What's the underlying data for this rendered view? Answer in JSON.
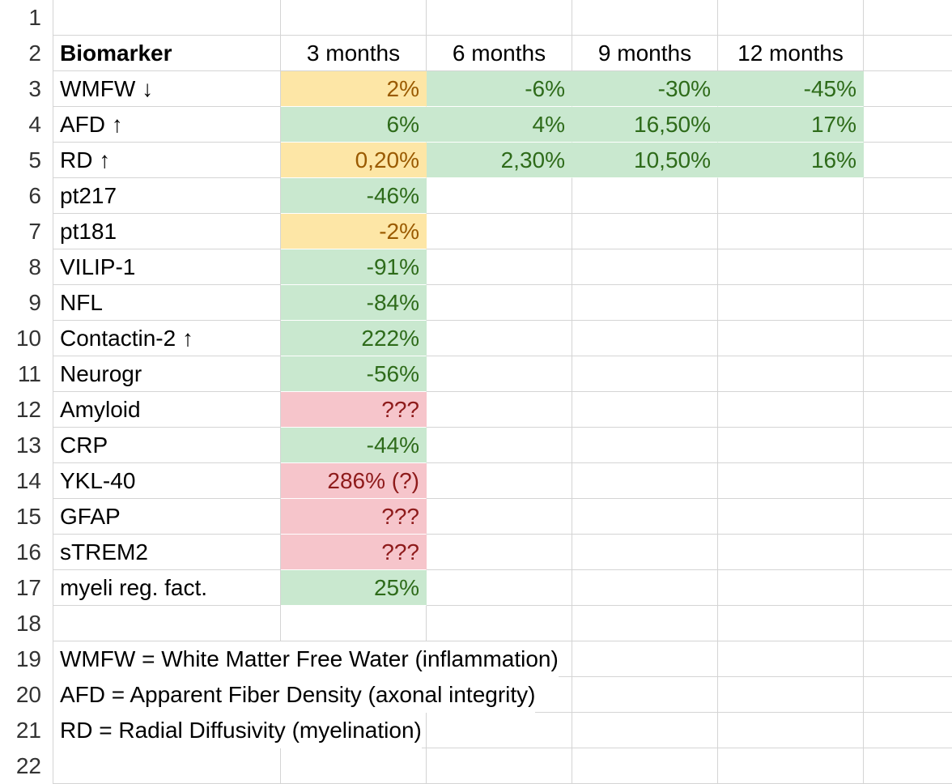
{
  "spreadsheet": {
    "row_numbers": [
      "1",
      "2",
      "3",
      "4",
      "5",
      "6",
      "7",
      "8",
      "9",
      "10",
      "11",
      "12",
      "13",
      "14",
      "15",
      "16",
      "17",
      "18",
      "19",
      "20",
      "21",
      "22"
    ],
    "header": {
      "biomarker": "Biomarker",
      "m3": "3 months",
      "m6": "6 months",
      "m9": "9 months",
      "m12": "12 months"
    },
    "rows": [
      {
        "name": "WMFW ↓",
        "m3": "2%",
        "m3_status": "warn",
        "m6": "-6%",
        "m9": "-30%",
        "m12": "-45%"
      },
      {
        "name": "AFD ↑",
        "m3": "6%",
        "m3_status": "good",
        "m6": "4%",
        "m9": "16,50%",
        "m12": "17%"
      },
      {
        "name": "RD ↑",
        "m3": "0,20%",
        "m3_status": "warn",
        "m6": "2,30%",
        "m9": "10,50%",
        "m12": "16%"
      },
      {
        "name": "pt217",
        "m3": "-46%",
        "m3_status": "good"
      },
      {
        "name": "pt181",
        "m3": "-2%",
        "m3_status": "warn"
      },
      {
        "name": "VILIP-1",
        "m3": "-91%",
        "m3_status": "good"
      },
      {
        "name": "NFL",
        "m3": "-84%",
        "m3_status": "good"
      },
      {
        "name": "Contactin-2 ↑",
        "m3": "222%",
        "m3_status": "good"
      },
      {
        "name": "Neurogr",
        "m3": "-56%",
        "m3_status": "good"
      },
      {
        "name": "Amyloid",
        "m3": "???",
        "m3_status": "bad"
      },
      {
        "name": "CRP",
        "m3": "-44%",
        "m3_status": "good"
      },
      {
        "name": "YKL-40",
        "m3": "286% (?)",
        "m3_status": "bad"
      },
      {
        "name": "GFAP",
        "m3": "???",
        "m3_status": "bad"
      },
      {
        "name": "sTREM2",
        "m3": "???",
        "m3_status": "bad"
      },
      {
        "name": "myeli reg. fact.",
        "m3": "25%",
        "m3_status": "good"
      }
    ],
    "notes": [
      "WMFW = White Matter Free Water (inflammation)",
      "AFD = Apparent Fiber Density (axonal integrity)",
      "RD = Radial Diffusivity (myelination)"
    ],
    "colors": {
      "good_fill": "#c9e8cf",
      "good_text": "#2e6b1a",
      "warn_fill": "#fde6a6",
      "warn_text": "#9a5a00",
      "bad_fill": "#f6c5cb",
      "bad_text": "#8e1b1b",
      "gridline": "#d4d4d4"
    }
  }
}
